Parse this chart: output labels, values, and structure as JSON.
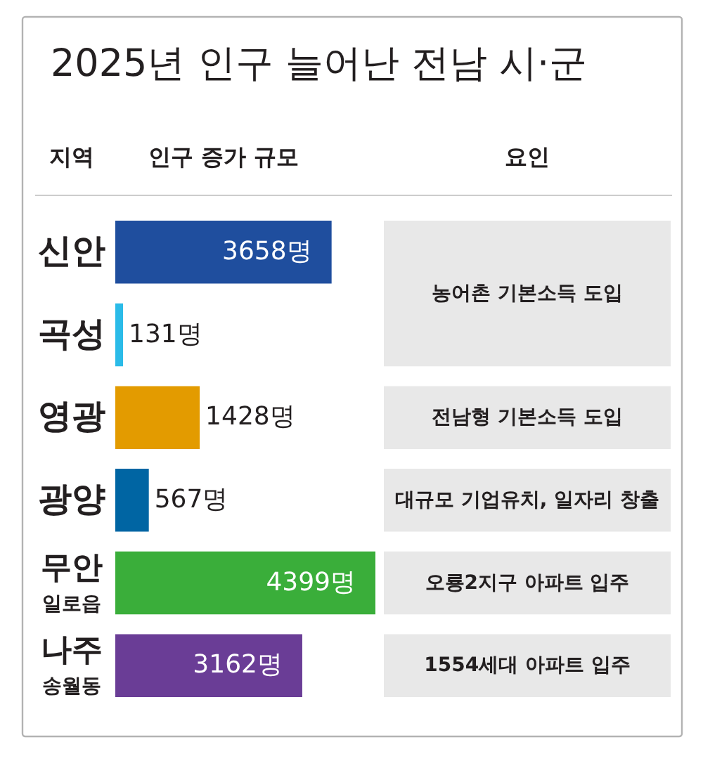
{
  "chart_data": {
    "type": "bar",
    "orientation": "horizontal",
    "title": "2025년 인구 늘어난 전남 시·군",
    "ylabel": "지역",
    "xlabel": "인구 증가 규모",
    "categories": [
      "신안",
      "곡성",
      "영광",
      "광양",
      "무안\n일로읍",
      "나주\n송월동"
    ],
    "values": [
      3658,
      131,
      1428,
      567,
      4399,
      3162
    ],
    "colors": [
      "#1f4e9e",
      "#2bbbe8",
      "#e39b00",
      "#0065a3",
      "#3aae3a",
      "#6a3d96"
    ],
    "value_labels": [
      "3658명",
      "131명",
      "1428명",
      "567명",
      "4399명",
      "3162명"
    ],
    "annotations": [
      "요인",
      "농어촌 기본소득 도입",
      "전남형 기본소득 도입",
      "대규모 기업유치, 일자리 창출",
      "오룡2지구 아파트 입주",
      "1554세대 아파트 입주"
    ]
  }
}
